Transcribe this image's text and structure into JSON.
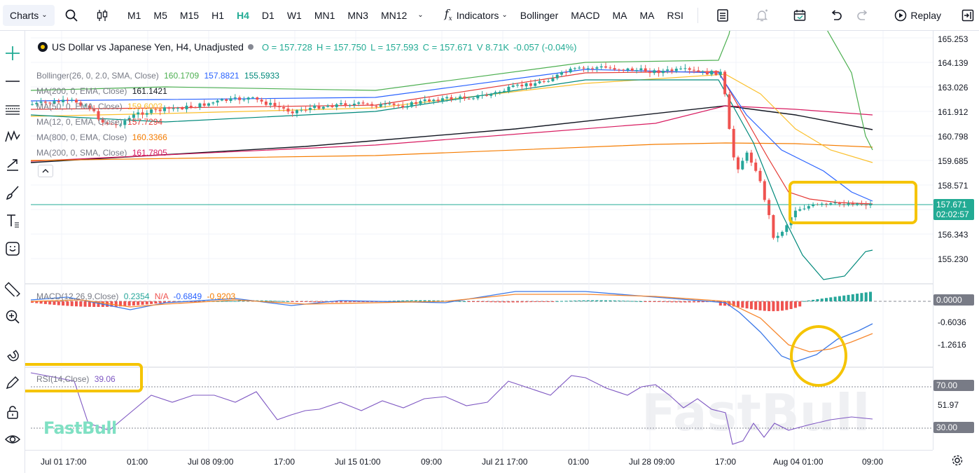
{
  "toolbar": {
    "charts_label": "Charts",
    "timeframes": [
      "M1",
      "M5",
      "M15",
      "H1",
      "H4",
      "D1",
      "W1",
      "MN1",
      "MN3",
      "MN12"
    ],
    "active_timeframe": "H4",
    "indicators_label": "Indicators",
    "quick_indicators": [
      "Bollinger",
      "MACD",
      "MA",
      "MA",
      "RSI"
    ],
    "replay_label": "Replay"
  },
  "symbol": {
    "title": "US Dollar vs Japanese Yen, H4, Unadjusted",
    "open": "O = 157.728",
    "high": "H = 157.750",
    "low": "L = 157.593",
    "close": "C = 157.671",
    "volume": "V 8.71K",
    "change": "-0.057 (-0.04%)"
  },
  "legends": {
    "bollinger": {
      "label": "Bollinger(26, 0, 2.0, SMA, Close)",
      "v1": "160.1709",
      "v2": "157.8821",
      "v3": "155.5933"
    },
    "ma1": {
      "label": "MA(200, 0, EMA, Close)",
      "value": "161.1421"
    },
    "ma2": {
      "label": "MA(50, 0, EMA, Close)",
      "value": "159.6003"
    },
    "ma3": {
      "label": "MA(12, 0, EMA, Close)",
      "value": "157.7294"
    },
    "ma4": {
      "label": "MA(800, 0, EMA, Close)",
      "value": "160.3366"
    },
    "ma5": {
      "label": "MA(200, 0, SMA, Close)",
      "value": "161.7805"
    },
    "macd": {
      "label": "MACD(12,26,9,Close)",
      "v1": "0.2354",
      "v2": "N/A",
      "v3": "-0.6849",
      "v4": "-0.9203"
    },
    "rsi": {
      "label": "RSI(14,Close)",
      "value": "39.06"
    }
  },
  "price_axis": [
    "165.253",
    "164.139",
    "163.026",
    "161.912",
    "160.798",
    "159.685",
    "158.571",
    "156.343",
    "155.230"
  ],
  "current_price": {
    "price": "157.671",
    "countdown": "02:02:57"
  },
  "macd_axis": {
    "zero": "0.0000",
    "l1": "-0.6036",
    "l2": "-1.2616"
  },
  "rsi_axis": {
    "upper": "70.00",
    "mid": "51.97",
    "lower": "30.00"
  },
  "time_axis": [
    "Jul 01 17:00",
    "01:00",
    "Jul 08 09:00",
    "17:00",
    "Jul 15 01:00",
    "09:00",
    "Jul 21 17:00",
    "01:00",
    "Jul 28 09:00",
    "17:00",
    "Aug 04 01:00",
    "09:00"
  ],
  "watermark": "FastBull",
  "colors": {
    "up": "#26a69a",
    "down": "#ef5350",
    "highlight": "#f5c400",
    "accent": "#22ab94"
  }
}
